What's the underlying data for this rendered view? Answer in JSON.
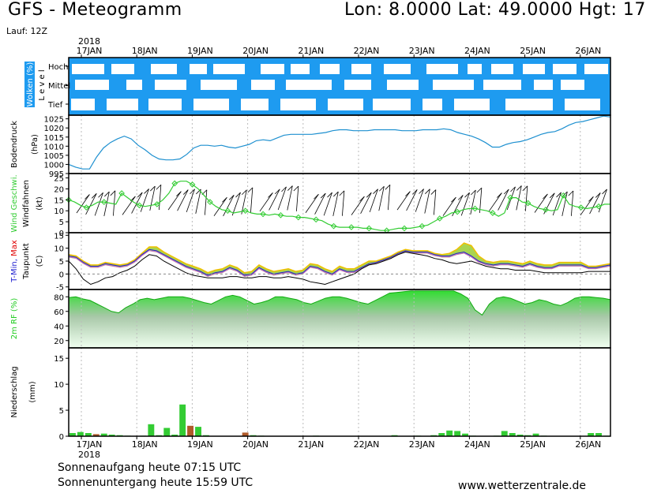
{
  "header": {
    "title": "GFS - Meteogramm",
    "location": "Lon: 8.0000  Lat: 49.0000  Hgt: 17",
    "run": "Lauf: 12Z"
  },
  "footer": {
    "sunrise": "Sonnenaufgang heute 07:15 UTC",
    "sunset": "Sonnenuntergang heute 15:59 UTC",
    "url": "www.wetterzentrale.de"
  },
  "colors": {
    "cloud_bg": "#1e9bf0",
    "pressure": "#1e90d0",
    "wind": "#33cc33",
    "tmax": "#e00000",
    "tmin": "#2020d0",
    "dewpoint": "#000000",
    "rh": "#22cc22",
    "precip_green": "#33cc33",
    "precip_brown": "#b05a2a"
  },
  "chart_data": {
    "type": "line",
    "x_labels": [
      "17JAN",
      "18JAN",
      "19JAN",
      "20JAN",
      "21JAN",
      "22JAN",
      "23JAN",
      "24JAN",
      "25JAN",
      "26JAN"
    ],
    "year_label": "2018",
    "panels": [
      {
        "id": "clouds",
        "ylabel_main": "Wolken",
        "ylabel_unit": "(%)",
        "ylabel_side": "L e v e l",
        "levels": [
          "Hoch",
          "Mittel",
          "Tief"
        ]
      },
      {
        "id": "pressure",
        "ylabel_main": "Bodendruck",
        "ylabel_unit": "(hPa)",
        "ylim": [
          995,
          1027
        ],
        "ticks": [
          995,
          1000,
          1005,
          1010,
          1015,
          1020,
          1025
        ],
        "series": [
          {
            "values": [
              1000,
              998.5,
              997.5,
              997.5,
              1004,
              1009,
              1012,
              1014,
              1015.5,
              1014,
              1010.5,
              1008,
              1005,
              1003,
              1002.5,
              1002.5,
              1003,
              1005.5,
              1009,
              1010.5,
              1010.5,
              1010,
              1010.5,
              1009.5,
              1009,
              1010,
              1011,
              1013,
              1013.5,
              1013,
              1014.5,
              1016,
              1016.5,
              1016.5,
              1016.5,
              1016.5,
              1017,
              1017.5,
              1018.5,
              1019,
              1019,
              1018.5,
              1018.5,
              1018.5,
              1019,
              1019,
              1019,
              1019,
              1018.5,
              1018.5,
              1018.5,
              1019,
              1019,
              1019,
              1019.5,
              1019,
              1017.5,
              1016.5,
              1015.5,
              1014,
              1012,
              1009.5,
              1009.5,
              1011,
              1012,
              1012.5,
              1013.5,
              1015,
              1016.5,
              1017.5,
              1018,
              1019.5,
              1021.5,
              1023,
              1023.5,
              1024.5,
              1025.5,
              1026.5,
              1026
            ]
          }
        ]
      },
      {
        "id": "wind",
        "ylabel_main": "Wind Geschwi.",
        "ylabel_sub": "Windfahnen",
        "ylabel_unit": "(kt)",
        "ylim": [
          0,
          27
        ],
        "ticks": [
          0,
          5,
          10,
          15,
          20,
          25
        ],
        "series": [
          {
            "values": [
              15,
              14,
              12.5,
              11.5,
              12.5,
              14,
              14,
              13.5,
              13,
              18,
              16,
              14,
              12.5,
              12,
              12.5,
              13,
              15,
              18,
              22.5,
              23.5,
              23.5,
              22,
              20,
              17,
              14,
              12,
              10.5,
              10,
              9,
              9.5,
              10,
              9,
              8.5,
              8.5,
              8,
              8.5,
              8,
              7.5,
              7.5,
              7,
              7,
              6.5,
              6,
              5.5,
              4,
              3,
              2.5,
              2.5,
              2.5,
              2.5,
              2,
              2,
              1.5,
              1,
              1,
              1.5,
              2,
              2,
              2,
              2.5,
              3,
              3.5,
              5,
              6.5,
              7.5,
              9,
              9.5,
              10.5,
              11,
              11,
              10.5,
              10,
              9,
              7.5,
              9,
              16,
              16,
              14,
              13.5,
              12,
              11,
              10.5,
              10,
              10.5,
              17,
              13,
              12,
              11.5,
              11,
              11.5,
              12,
              13,
              13
            ]
          }
        ]
      },
      {
        "id": "temperature",
        "ylabel_main": "T-Min, Max",
        "ylabel_sub": "Taupunkt",
        "ylabel_unit": "(C)",
        "ylim": [
          -6,
          16
        ],
        "ticks": [
          -5,
          0,
          5,
          10,
          15
        ],
        "series": [
          {
            "name": "Max",
            "values": [
              7.5,
              7,
              5,
              3.5,
              3.5,
              4.5,
              4,
              3.5,
              4,
              5.5,
              8,
              10.5,
              10.5,
              8.5,
              7,
              5.5,
              4,
              3,
              2,
              0.5,
              1.5,
              2,
              3.5,
              2.5,
              0.5,
              1,
              3.5,
              2,
              1,
              1.5,
              2,
              1,
              1.5,
              4,
              3.5,
              2,
              1,
              3,
              2,
              2,
              3.5,
              5,
              5,
              6,
              7,
              8.5,
              9.5,
              9,
              9,
              9,
              8,
              7.5,
              8,
              9.5,
              12,
              11,
              7,
              5,
              4.5,
              5,
              5,
              4.5,
              4,
              5,
              4,
              3.5,
              3.5,
              4.5,
              4.5,
              4.5,
              4.5,
              3,
              3,
              3.5,
              4
            ]
          },
          {
            "name": "Min",
            "values": [
              7,
              6.5,
              4.5,
              3,
              3,
              4,
              3.5,
              3,
              3.5,
              5,
              7.5,
              9.5,
              9,
              7.5,
              6,
              4.5,
              3,
              2,
              1,
              -0.5,
              0.5,
              1,
              2.5,
              1.5,
              -0.5,
              0,
              2.5,
              1,
              0,
              0.5,
              1,
              0,
              0.5,
              3,
              2.5,
              1,
              0,
              2,
              1,
              1,
              2.5,
              4,
              4.5,
              5.5,
              6.5,
              8,
              9,
              8.5,
              8.5,
              8.5,
              7.5,
              7,
              7,
              8,
              8.5,
              7,
              5,
              4,
              3.5,
              4,
              4,
              3.5,
              3,
              4,
              3,
              2.5,
              2.5,
              3.5,
              3.5,
              3.5,
              3.5,
              2.5,
              2.5,
              3,
              3.5
            ]
          },
          {
            "name": "Taupunkt",
            "values": [
              5,
              2,
              -2,
              -4,
              -3,
              -1.5,
              -1,
              0.5,
              1.5,
              3,
              5.5,
              7.5,
              7,
              5,
              3.5,
              2,
              0.5,
              -0.5,
              -1,
              -1.5,
              -1.5,
              -1.5,
              -1,
              -1,
              -1.5,
              -1.5,
              -1,
              -1,
              -1.5,
              -1.5,
              -1,
              -1.5,
              -2,
              -3,
              -3.5,
              -4,
              -3,
              -2,
              -1,
              0,
              2,
              3.5,
              4,
              5,
              6,
              7.5,
              8.5,
              8,
              7.5,
              7,
              6,
              5.5,
              4.5,
              4,
              4.5,
              5,
              4,
              3,
              2.5,
              2,
              2,
              1.5,
              1.5,
              1.5,
              1,
              0.5,
              0.5,
              0.5,
              0.5,
              0.5,
              0.5,
              1,
              1,
              1,
              1
            ]
          }
        ]
      },
      {
        "id": "rh",
        "ylabel_main": "2m RF",
        "ylabel_unit": "(%)",
        "ylim": [
          10,
          90
        ],
        "ticks": [
          20,
          40,
          60,
          80
        ],
        "series": [
          {
            "values": [
              79,
              80,
              77,
              75,
              70,
              65,
              60,
              58,
              65,
              70,
              76,
              78,
              76,
              78,
              80,
              80,
              80,
              78,
              75,
              72,
              70,
              75,
              80,
              82,
              80,
              75,
              70,
              72,
              75,
              80,
              80,
              78,
              76,
              72,
              70,
              74,
              78,
              80,
              80,
              78,
              75,
              72,
              70,
              75,
              80,
              85,
              86,
              87,
              88,
              88,
              88,
              88,
              88,
              88,
              88,
              84,
              78,
              62,
              55,
              70,
              78,
              80,
              78,
              74,
              70,
              72,
              76,
              74,
              70,
              68,
              72,
              78,
              80,
              80,
              79,
              78,
              76
            ]
          }
        ]
      },
      {
        "id": "precip",
        "ylabel_main": "Niederschlag",
        "ylabel_unit": "(mm)",
        "ylim": [
          0,
          17
        ],
        "ticks": [
          0,
          5,
          10,
          15
        ],
        "series": [
          {
            "values": [
              0.6,
              0.8,
              0.6,
              0.4,
              0.5,
              0.3,
              0.2,
              0.1,
              0,
              0.1,
              2.3,
              0.2,
              1.6,
              0.3,
              6.1,
              2.0,
              1.8,
              0.2,
              0,
              0,
              0,
              0,
              0.7,
              0.2,
              0.1,
              0,
              0,
              0,
              0,
              0,
              0,
              0.1,
              0,
              0,
              0,
              0,
              0,
              0,
              0,
              0,
              0,
              0.2,
              0,
              0,
              0.1,
              0,
              0.2,
              0.6,
              1.1,
              1.0,
              0.5,
              0.1,
              0,
              0,
              0.1,
              1.0,
              0.6,
              0.3,
              0.2,
              0.5,
              0.1,
              0,
              0,
              0,
              0,
              0,
              0.6,
              0.6,
              0.1
            ]
          }
        ]
      }
    ]
  }
}
